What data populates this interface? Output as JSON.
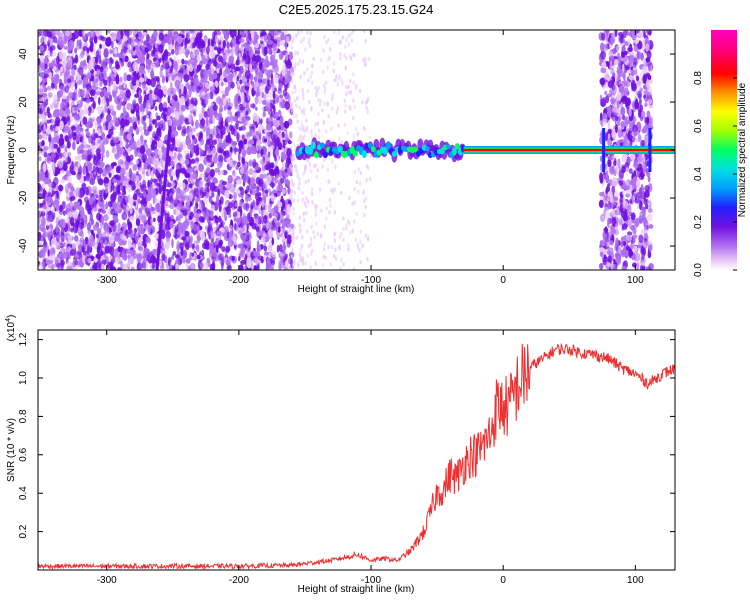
{
  "figure": {
    "title": "C2E5.2025.175.23.15.G24"
  },
  "chart_data": [
    {
      "type": "heatmap",
      "xlabel": "Height of straight line (km)",
      "ylabel": "Frequency (Hz)",
      "xlim": [
        -352,
        130
      ],
      "ylim": [
        -50,
        50
      ],
      "xticks": [
        -300,
        -200,
        -100,
        0,
        100
      ],
      "yticks": [
        -40,
        -20,
        0,
        20,
        40
      ],
      "colorbar": {
        "label": "Normalized spectral amplitude",
        "range": [
          0,
          1
        ],
        "ticks": [
          "0.0",
          "0.2",
          "0.4",
          "0.6",
          "0.8"
        ],
        "colors": [
          "#ffffff",
          "#e8c8f8",
          "#b070f0",
          "#7010e0",
          "#2020ff",
          "#00a0ff",
          "#00e0e0",
          "#00ff60",
          "#a0ff00",
          "#ffff00",
          "#ff9000",
          "#ff0000",
          "#ff0080",
          "#ff00c0"
        ]
      },
      "features": {
        "noise_segments": [
          [
            -352,
            -160
          ],
          [
            74,
            112
          ]
        ],
        "faint_noise_segment": [
          -160,
          -100
        ],
        "signal_band": {
          "x": [
            -155,
            130
          ],
          "center_hz": 0
        },
        "diagonal_streak": {
          "x": [
            -262,
            -252
          ],
          "y": [
            -50,
            10
          ]
        }
      }
    },
    {
      "type": "line",
      "xlabel": "Height of straight line (km)",
      "ylabel": "SNR (10 * v/v)",
      "multiplier_label": "(x10",
      "multiplier_exp": "4",
      "xlim": [
        -352,
        130
      ],
      "ylim": [
        0,
        1.25
      ],
      "xticks": [
        -300,
        -200,
        -100,
        0,
        100
      ],
      "yticks": [
        "0.2",
        "0.4",
        "0.6",
        "0.8",
        "1.0",
        "1.2"
      ],
      "color": "#f03030",
      "series": [
        {
          "x": [
            -352,
            -300,
            -250,
            -200,
            -160,
            -130,
            -110,
            -100,
            -90,
            -80,
            -70,
            -60,
            -55,
            -50,
            -45,
            -40,
            -35,
            -30,
            -25,
            -20,
            -15,
            -10,
            -5,
            0,
            5,
            10,
            15,
            20,
            25,
            30,
            40,
            50,
            60,
            70,
            80,
            90,
            100,
            110,
            120,
            130
          ],
          "values": [
            0.02,
            0.02,
            0.02,
            0.02,
            0.025,
            0.05,
            0.08,
            0.05,
            0.06,
            0.05,
            0.1,
            0.2,
            0.3,
            0.4,
            0.42,
            0.5,
            0.48,
            0.55,
            0.6,
            0.6,
            0.65,
            0.7,
            0.85,
            0.85,
            0.85,
            0.95,
            1.0,
            1.05,
            1.08,
            1.1,
            1.15,
            1.15,
            1.13,
            1.12,
            1.1,
            1.05,
            1.02,
            0.97,
            1.02,
            1.05
          ]
        }
      ]
    }
  ]
}
